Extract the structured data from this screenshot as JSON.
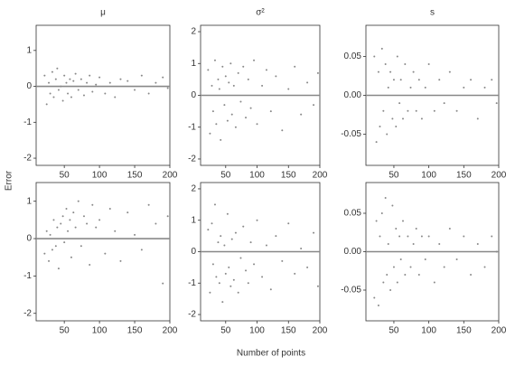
{
  "figure": {
    "xlabel": "Number of points",
    "ylabel": "Error"
  },
  "chart_data": [
    {
      "type": "scatter",
      "title": "μ",
      "color": "#555555",
      "hline": 0,
      "xlim": [
        10,
        200
      ],
      "xticks": [
        50,
        100,
        150,
        200
      ],
      "ylim": [
        -2.2,
        1.7
      ],
      "yticks": [
        -2,
        -1,
        0,
        1
      ],
      "x": [
        22,
        25,
        28,
        30,
        33,
        35,
        38,
        40,
        42,
        45,
        48,
        50,
        53,
        55,
        58,
        60,
        63,
        66,
        70,
        74,
        78,
        82,
        86,
        90,
        95,
        100,
        108,
        115,
        122,
        130,
        140,
        150,
        160,
        170,
        180,
        190,
        197
      ],
      "y": [
        0.3,
        -0.5,
        0.1,
        -0.2,
        0.4,
        -0.3,
        0.2,
        0.5,
        -0.1,
        0.0,
        -0.4,
        0.3,
        0.1,
        -0.2,
        0.2,
        -0.3,
        0.15,
        0.35,
        -0.1,
        0.2,
        -0.25,
        0.1,
        0.3,
        -0.15,
        0.05,
        0.25,
        -0.2,
        0.1,
        -0.3,
        0.2,
        0.15,
        -0.1,
        0.3,
        -0.2,
        0.1,
        0.25,
        -0.05
      ]
    },
    {
      "type": "scatter",
      "title": "σ²",
      "color": "#555555",
      "hline": 0,
      "xlim": [
        10,
        200
      ],
      "xticks": [
        50,
        100,
        150,
        200
      ],
      "ylim": [
        -2.2,
        2.2
      ],
      "yticks": [
        -2,
        -1,
        0,
        1,
        2
      ],
      "x": [
        22,
        25,
        28,
        30,
        33,
        35,
        38,
        40,
        42,
        45,
        48,
        50,
        53,
        55,
        58,
        60,
        63,
        66,
        70,
        74,
        78,
        82,
        86,
        90,
        95,
        100,
        108,
        115,
        122,
        130,
        140,
        150,
        160,
        170,
        180,
        190,
        197
      ],
      "y": [
        0.8,
        -1.2,
        0.3,
        -0.5,
        1.1,
        -0.9,
        0.5,
        0.2,
        -1.4,
        0.9,
        -0.3,
        0.6,
        -0.8,
        0.4,
        1.0,
        -0.6,
        0.3,
        -1.0,
        0.7,
        -0.2,
        0.9,
        -0.7,
        0.5,
        -0.4,
        1.1,
        -0.9,
        0.3,
        0.8,
        -0.5,
        0.6,
        -1.1,
        0.2,
        0.9,
        -0.6,
        0.4,
        -0.3,
        0.7
      ]
    },
    {
      "type": "scatter",
      "title": "s",
      "color": "#555555",
      "hline": 0,
      "xlim": [
        10,
        200
      ],
      "xticks": [
        50,
        100,
        150,
        200
      ],
      "ylim": [
        -0.09,
        0.09
      ],
      "yticks": [
        -0.05,
        {
          "value": 0,
          "label": "0.00"
        },
        0.05
      ],
      "x": [
        22,
        25,
        28,
        30,
        33,
        35,
        38,
        40,
        42,
        45,
        48,
        50,
        53,
        55,
        58,
        60,
        63,
        66,
        70,
        74,
        78,
        82,
        86,
        90,
        95,
        100,
        108,
        115,
        122,
        130,
        140,
        150,
        160,
        170,
        180,
        190,
        197
      ],
      "y": [
        0.05,
        -0.06,
        0.03,
        -0.04,
        0.06,
        -0.02,
        0.04,
        -0.05,
        0.01,
        0.03,
        -0.03,
        0.02,
        -0.04,
        0.05,
        -0.01,
        0.02,
        -0.03,
        0.04,
        -0.02,
        0.01,
        0.03,
        -0.02,
        0.02,
        -0.03,
        0.01,
        0.04,
        -0.02,
        0.02,
        -0.01,
        0.03,
        -0.02,
        0.01,
        0.02,
        -0.03,
        0.01,
        0.02,
        -0.01
      ]
    },
    {
      "type": "scatter",
      "color": "#555555",
      "hline": 0,
      "xlim": [
        10,
        200
      ],
      "xticks": [
        50,
        100,
        150,
        200
      ],
      "ylim": [
        -2.2,
        1.5
      ],
      "yticks": [
        -2,
        -1,
        0,
        1
      ],
      "x": [
        22,
        25,
        28,
        30,
        33,
        35,
        38,
        40,
        42,
        45,
        48,
        50,
        53,
        55,
        58,
        60,
        63,
        66,
        70,
        74,
        78,
        82,
        86,
        90,
        95,
        100,
        108,
        115,
        122,
        130,
        140,
        150,
        160,
        170,
        180,
        190,
        197
      ],
      "y": [
        -0.4,
        0.2,
        -0.6,
        0.1,
        -0.3,
        0.5,
        -0.2,
        0.3,
        -0.8,
        0.4,
        0.6,
        -0.1,
        0.8,
        0.2,
        0.5,
        -0.5,
        0.7,
        0.3,
        1.0,
        -0.2,
        0.6,
        0.4,
        -0.7,
        0.9,
        0.3,
        0.5,
        -0.4,
        0.8,
        0.2,
        -0.6,
        0.7,
        0.1,
        -0.3,
        0.9,
        0.4,
        -1.2,
        0.6
      ]
    },
    {
      "type": "scatter",
      "color": "#555555",
      "hline": 0,
      "xlim": [
        10,
        200
      ],
      "xticks": [
        50,
        100,
        150,
        200
      ],
      "ylim": [
        -2.2,
        2.2
      ],
      "yticks": [
        -2,
        -1,
        0,
        1,
        2
      ],
      "x": [
        22,
        25,
        28,
        30,
        33,
        35,
        38,
        40,
        42,
        45,
        48,
        50,
        53,
        55,
        58,
        60,
        63,
        66,
        70,
        74,
        78,
        82,
        86,
        90,
        95,
        100,
        108,
        115,
        122,
        130,
        140,
        150,
        160,
        170,
        180,
        190,
        197
      ],
      "y": [
        0.7,
        -1.3,
        0.9,
        -0.4,
        1.5,
        -0.8,
        0.3,
        -1.0,
        0.5,
        -1.6,
        0.2,
        -0.7,
        1.2,
        -0.5,
        -1.1,
        0.4,
        -0.9,
        0.6,
        -1.3,
        -0.2,
        0.8,
        -0.6,
        -1.0,
        0.3,
        -0.4,
        1.0,
        -0.8,
        0.2,
        -1.2,
        0.5,
        -0.3,
        0.9,
        -0.7,
        0.1,
        -0.5,
        0.6,
        -1.1
      ]
    },
    {
      "type": "scatter",
      "color": "#555555",
      "hline": 0,
      "xlim": [
        10,
        200
      ],
      "xticks": [
        50,
        100,
        150,
        200
      ],
      "ylim": [
        -0.09,
        0.09
      ],
      "yticks": [
        -0.05,
        {
          "value": 0,
          "label": "0.00"
        },
        0.05
      ],
      "x": [
        22,
        25,
        28,
        30,
        33,
        35,
        38,
        40,
        42,
        45,
        48,
        50,
        53,
        55,
        58,
        60,
        63,
        66,
        70,
        74,
        78,
        82,
        86,
        90,
        95,
        100,
        108,
        115,
        122,
        130,
        140,
        150,
        160,
        170,
        180,
        190,
        197
      ],
      "y": [
        -0.06,
        0.04,
        -0.07,
        0.02,
        0.05,
        -0.04,
        0.07,
        -0.03,
        0.01,
        -0.05,
        0.06,
        -0.02,
        0.03,
        -0.04,
        0.02,
        -0.01,
        0.04,
        -0.03,
        0.02,
        -0.02,
        0.01,
        0.03,
        -0.03,
        0.02,
        -0.01,
        0.02,
        -0.04,
        0.01,
        -0.02,
        0.03,
        -0.01,
        0.02,
        -0.03,
        0.01,
        -0.02,
        0.02,
        0
      ]
    }
  ]
}
